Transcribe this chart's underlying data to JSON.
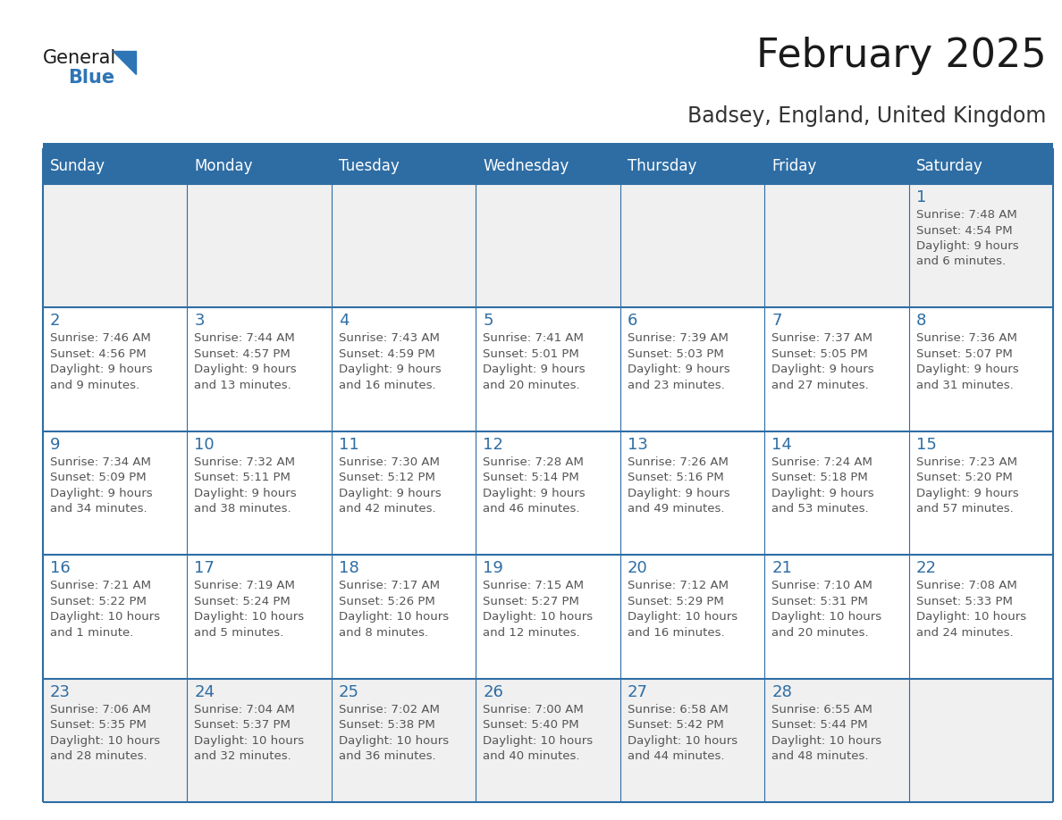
{
  "title": "February 2025",
  "subtitle": "Badsey, England, United Kingdom",
  "header_bg": "#2E6DA4",
  "header_text_color": "#FFFFFF",
  "cell_bg_row0": "#F0F0F0",
  "cell_bg_default": "#FFFFFF",
  "cell_bg_last": "#F0F0F0",
  "day_number_color": "#2E6DA4",
  "cell_text_color": "#555555",
  "grid_line_color": "#2E6DA4",
  "days_of_week": [
    "Sunday",
    "Monday",
    "Tuesday",
    "Wednesday",
    "Thursday",
    "Friday",
    "Saturday"
  ],
  "logo_general_color": "#1a1a1a",
  "logo_blue_color": "#2E75B6",
  "calendar_data": [
    [
      {
        "day": "",
        "info": ""
      },
      {
        "day": "",
        "info": ""
      },
      {
        "day": "",
        "info": ""
      },
      {
        "day": "",
        "info": ""
      },
      {
        "day": "",
        "info": ""
      },
      {
        "day": "",
        "info": ""
      },
      {
        "day": "1",
        "info": "Sunrise: 7:48 AM\nSunset: 4:54 PM\nDaylight: 9 hours\nand 6 minutes."
      }
    ],
    [
      {
        "day": "2",
        "info": "Sunrise: 7:46 AM\nSunset: 4:56 PM\nDaylight: 9 hours\nand 9 minutes."
      },
      {
        "day": "3",
        "info": "Sunrise: 7:44 AM\nSunset: 4:57 PM\nDaylight: 9 hours\nand 13 minutes."
      },
      {
        "day": "4",
        "info": "Sunrise: 7:43 AM\nSunset: 4:59 PM\nDaylight: 9 hours\nand 16 minutes."
      },
      {
        "day": "5",
        "info": "Sunrise: 7:41 AM\nSunset: 5:01 PM\nDaylight: 9 hours\nand 20 minutes."
      },
      {
        "day": "6",
        "info": "Sunrise: 7:39 AM\nSunset: 5:03 PM\nDaylight: 9 hours\nand 23 minutes."
      },
      {
        "day": "7",
        "info": "Sunrise: 7:37 AM\nSunset: 5:05 PM\nDaylight: 9 hours\nand 27 minutes."
      },
      {
        "day": "8",
        "info": "Sunrise: 7:36 AM\nSunset: 5:07 PM\nDaylight: 9 hours\nand 31 minutes."
      }
    ],
    [
      {
        "day": "9",
        "info": "Sunrise: 7:34 AM\nSunset: 5:09 PM\nDaylight: 9 hours\nand 34 minutes."
      },
      {
        "day": "10",
        "info": "Sunrise: 7:32 AM\nSunset: 5:11 PM\nDaylight: 9 hours\nand 38 minutes."
      },
      {
        "day": "11",
        "info": "Sunrise: 7:30 AM\nSunset: 5:12 PM\nDaylight: 9 hours\nand 42 minutes."
      },
      {
        "day": "12",
        "info": "Sunrise: 7:28 AM\nSunset: 5:14 PM\nDaylight: 9 hours\nand 46 minutes."
      },
      {
        "day": "13",
        "info": "Sunrise: 7:26 AM\nSunset: 5:16 PM\nDaylight: 9 hours\nand 49 minutes."
      },
      {
        "day": "14",
        "info": "Sunrise: 7:24 AM\nSunset: 5:18 PM\nDaylight: 9 hours\nand 53 minutes."
      },
      {
        "day": "15",
        "info": "Sunrise: 7:23 AM\nSunset: 5:20 PM\nDaylight: 9 hours\nand 57 minutes."
      }
    ],
    [
      {
        "day": "16",
        "info": "Sunrise: 7:21 AM\nSunset: 5:22 PM\nDaylight: 10 hours\nand 1 minute."
      },
      {
        "day": "17",
        "info": "Sunrise: 7:19 AM\nSunset: 5:24 PM\nDaylight: 10 hours\nand 5 minutes."
      },
      {
        "day": "18",
        "info": "Sunrise: 7:17 AM\nSunset: 5:26 PM\nDaylight: 10 hours\nand 8 minutes."
      },
      {
        "day": "19",
        "info": "Sunrise: 7:15 AM\nSunset: 5:27 PM\nDaylight: 10 hours\nand 12 minutes."
      },
      {
        "day": "20",
        "info": "Sunrise: 7:12 AM\nSunset: 5:29 PM\nDaylight: 10 hours\nand 16 minutes."
      },
      {
        "day": "21",
        "info": "Sunrise: 7:10 AM\nSunset: 5:31 PM\nDaylight: 10 hours\nand 20 minutes."
      },
      {
        "day": "22",
        "info": "Sunrise: 7:08 AM\nSunset: 5:33 PM\nDaylight: 10 hours\nand 24 minutes."
      }
    ],
    [
      {
        "day": "23",
        "info": "Sunrise: 7:06 AM\nSunset: 5:35 PM\nDaylight: 10 hours\nand 28 minutes."
      },
      {
        "day": "24",
        "info": "Sunrise: 7:04 AM\nSunset: 5:37 PM\nDaylight: 10 hours\nand 32 minutes."
      },
      {
        "day": "25",
        "info": "Sunrise: 7:02 AM\nSunset: 5:38 PM\nDaylight: 10 hours\nand 36 minutes."
      },
      {
        "day": "26",
        "info": "Sunrise: 7:00 AM\nSunset: 5:40 PM\nDaylight: 10 hours\nand 40 minutes."
      },
      {
        "day": "27",
        "info": "Sunrise: 6:58 AM\nSunset: 5:42 PM\nDaylight: 10 hours\nand 44 minutes."
      },
      {
        "day": "28",
        "info": "Sunrise: 6:55 AM\nSunset: 5:44 PM\nDaylight: 10 hours\nand 48 minutes."
      },
      {
        "day": "",
        "info": ""
      }
    ]
  ]
}
